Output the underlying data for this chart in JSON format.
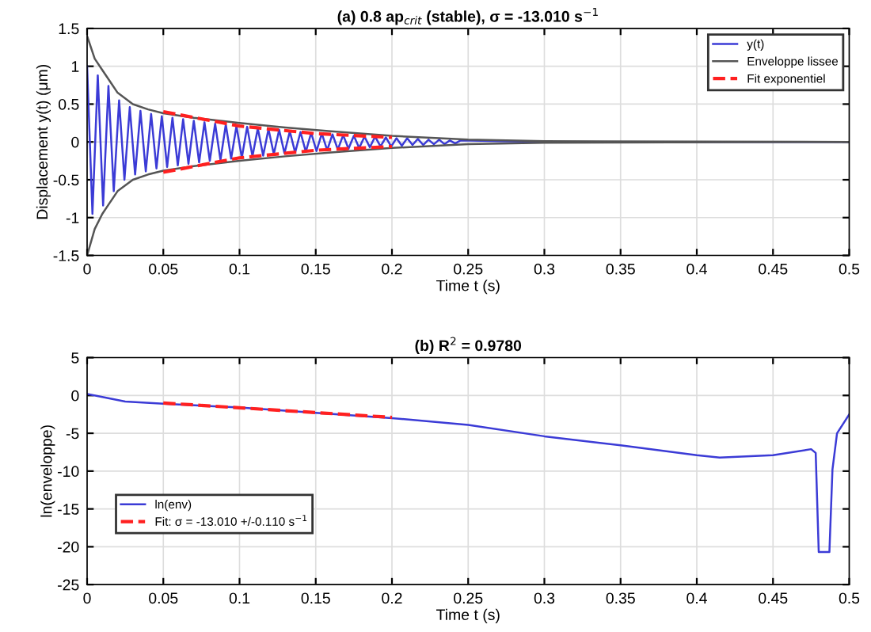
{
  "chart_data": [
    {
      "type": "line",
      "title": "(a) 0.8 ap$_{crit}$ (stable), σ = -13.010 s$^{−1}$",
      "xlabel": "Time t (s)",
      "ylabel": "Displacement y(t) (μm)",
      "xlim": [
        0,
        0.5
      ],
      "xticks": [
        0,
        0.05,
        0.1,
        0.15,
        0.2,
        0.25,
        0.3,
        0.35,
        0.4,
        0.45,
        0.5
      ],
      "ylim": [
        -1.5,
        1.5
      ],
      "yticks": [
        -1.5,
        -1,
        -0.5,
        0,
        0.5,
        1,
        1.5
      ],
      "grid": true,
      "legend": "top right",
      "series": [
        {
          "name": "y(t)",
          "color": "#3b3bd6",
          "line_style": "solid",
          "x": [
            0,
            0.0035,
            0.007,
            0.0105,
            0.014,
            0.0175,
            0.021,
            0.0245,
            0.028,
            0.0315,
            0.035,
            0.0385,
            0.042,
            0.0455,
            0.049,
            0.0525,
            0.056,
            0.0595,
            0.063,
            0.0665,
            0.07,
            0.0735,
            0.077,
            0.0805,
            0.084,
            0.0875,
            0.091,
            0.0945,
            0.098,
            0.1015,
            0.105,
            0.1085,
            0.112,
            0.1155,
            0.119,
            0.1225,
            0.126,
            0.1295,
            0.133,
            0.1365,
            0.14,
            0.1435,
            0.147,
            0.1505,
            0.154,
            0.1575,
            0.161,
            0.1645,
            0.168,
            0.1715,
            0.175,
            0.1785,
            0.182,
            0.1855,
            0.189,
            0.1925,
            0.196,
            0.1995,
            0.203,
            0.2065,
            0.21,
            0.2135,
            0.217,
            0.2205,
            0.224,
            0.2275,
            0.231,
            0.2345,
            0.238,
            0.2415,
            0.245,
            0.3,
            0.5
          ],
          "values": [
            1.0,
            -0.95,
            0.88,
            -0.84,
            0.74,
            -0.65,
            0.55,
            -0.5,
            0.46,
            -0.43,
            0.41,
            -0.39,
            0.37,
            -0.35,
            0.34,
            -0.33,
            0.32,
            -0.31,
            0.3,
            -0.29,
            0.28,
            -0.27,
            0.26,
            -0.25,
            0.24,
            -0.24,
            0.23,
            -0.22,
            0.21,
            -0.21,
            0.2,
            -0.19,
            0.18,
            -0.18,
            0.17,
            -0.16,
            0.16,
            -0.15,
            0.14,
            -0.14,
            0.13,
            -0.13,
            0.12,
            -0.12,
            0.11,
            -0.11,
            0.1,
            -0.1,
            0.09,
            -0.09,
            0.08,
            -0.08,
            0.07,
            -0.07,
            0.07,
            -0.06,
            0.06,
            -0.06,
            0.05,
            -0.05,
            0.05,
            -0.04,
            0.04,
            -0.04,
            0.03,
            -0.03,
            0.03,
            -0.03,
            0.02,
            -0.02,
            0.02,
            0,
            0
          ]
        },
        {
          "name": "Enveloppe lissee",
          "color": "#555555",
          "line_style": "solid",
          "x": [
            0,
            0.005,
            0.01,
            0.015,
            0.02,
            0.03,
            0.04,
            0.05,
            0.07,
            0.1,
            0.13,
            0.16,
            0.2,
            0.25,
            0.3,
            0.5
          ],
          "values": [
            1.4,
            1.1,
            0.95,
            0.8,
            0.65,
            0.5,
            0.43,
            0.38,
            0.32,
            0.25,
            0.19,
            0.14,
            0.08,
            0.03,
            0.01,
            0
          ]
        },
        {
          "color": "#555555",
          "line_style": "solid",
          "x": [
            0,
            0.005,
            0.01,
            0.015,
            0.02,
            0.03,
            0.04,
            0.05,
            0.07,
            0.1,
            0.13,
            0.16,
            0.2,
            0.25,
            0.3,
            0.5
          ],
          "values": [
            -1.5,
            -1.15,
            -0.95,
            -0.8,
            -0.65,
            -0.5,
            -0.43,
            -0.38,
            -0.32,
            -0.25,
            -0.19,
            -0.14,
            -0.08,
            -0.03,
            -0.01,
            0
          ]
        },
        {
          "name": "Fit exponentiel",
          "color": "#ff2020",
          "line_style": "dashed",
          "x": [
            0.05,
            0.1,
            0.15,
            0.2
          ],
          "values": [
            0.4,
            0.21,
            0.11,
            0.06
          ]
        },
        {
          "color": "#ff2020",
          "line_style": "dashed",
          "x": [
            0.05,
            0.1,
            0.15,
            0.2
          ],
          "values": [
            -0.4,
            -0.21,
            -0.11,
            -0.06
          ]
        }
      ]
    },
    {
      "type": "line",
      "title": "(b) R$^{2}$ = 0.9780",
      "xlabel": "Time t (s)",
      "ylabel": "ln(enveloppe)",
      "xlim": [
        0,
        0.5
      ],
      "xticks": [
        0,
        0.05,
        0.1,
        0.15,
        0.2,
        0.25,
        0.3,
        0.35,
        0.4,
        0.45,
        0.5
      ],
      "ylim": [
        -25,
        5
      ],
      "yticks": [
        -25,
        -20,
        -15,
        -10,
        -5,
        0,
        5
      ],
      "grid": true,
      "legend": "bottom left",
      "series": [
        {
          "name": "ln(env)",
          "color": "#3b3bd6",
          "line_style": "solid",
          "x": [
            0,
            0.01,
            0.025,
            0.05,
            0.1,
            0.15,
            0.2,
            0.25,
            0.3,
            0.35,
            0.4,
            0.415,
            0.45,
            0.475,
            0.478,
            0.48,
            0.487,
            0.489,
            0.492,
            0.5
          ],
          "values": [
            0.2,
            -0.2,
            -0.8,
            -1.1,
            -1.6,
            -2.3,
            -3.0,
            -3.9,
            -5.4,
            -6.6,
            -7.9,
            -8.2,
            -7.9,
            -7.1,
            -7.6,
            -20.7,
            -20.7,
            -9.8,
            -5,
            -2.5
          ]
        },
        {
          "name": "Fit: σ = -13.010 +/-0.110 s$^{−1}$",
          "color": "#ff2020",
          "line_style": "dashed",
          "x": [
            0.05,
            0.2
          ],
          "values": [
            -1.0,
            -2.9
          ]
        }
      ]
    }
  ]
}
